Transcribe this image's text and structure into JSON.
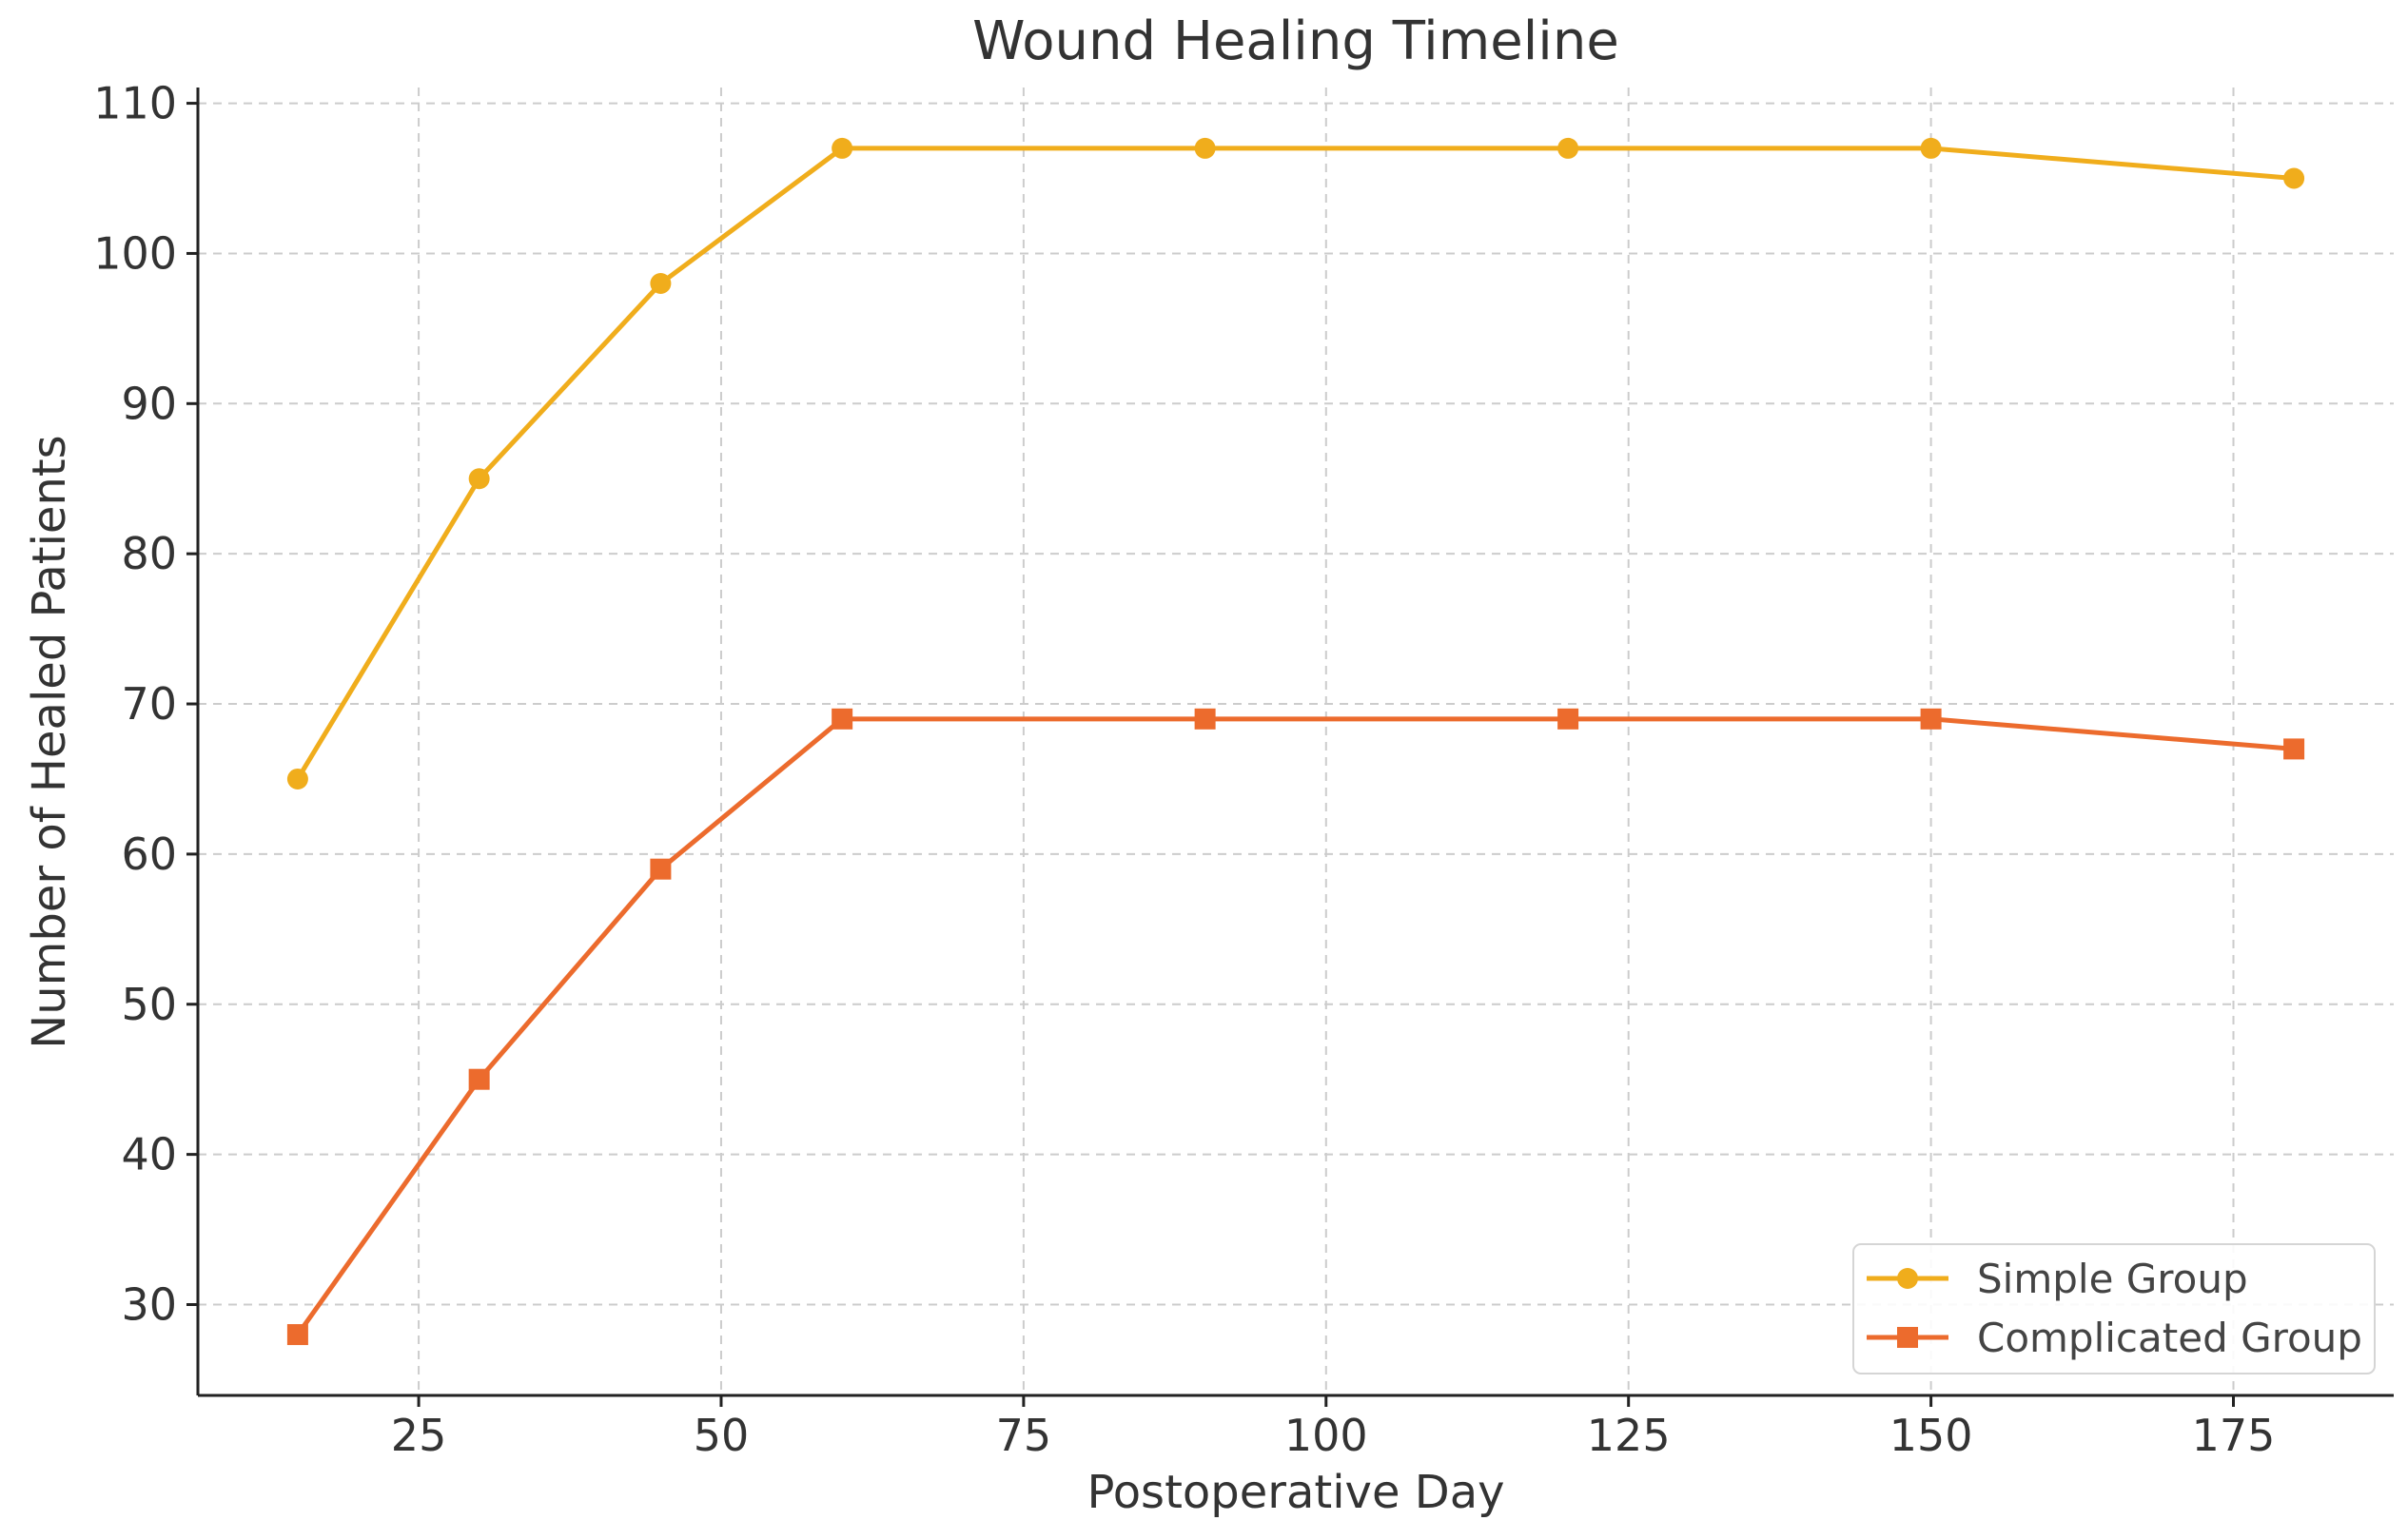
{
  "chart_data": {
    "type": "line",
    "title": "Wound Healing Timeline",
    "xlabel": "Postoperative Day",
    "ylabel": "Number of Healed Patients",
    "x": [
      15,
      30,
      45,
      60,
      90,
      120,
      150,
      180
    ],
    "xlim": [
      6.75,
      188.25
    ],
    "ylim": [
      23.95,
      111.05
    ],
    "xticks": [
      25,
      50,
      75,
      100,
      125,
      150,
      175
    ],
    "yticks": [
      30,
      40,
      50,
      60,
      70,
      80,
      90,
      100,
      110
    ],
    "grid": true,
    "legend_position": "lower-right",
    "series": [
      {
        "name": "Simple Group",
        "values": [
          65,
          85,
          98,
          107,
          107,
          107,
          107,
          105
        ],
        "color": "#f0ad1c",
        "marker": "circle"
      },
      {
        "name": "Complicated Group",
        "values": [
          28,
          45,
          59,
          69,
          69,
          69,
          69,
          67
        ],
        "color": "#ec6b2d",
        "marker": "square"
      }
    ]
  }
}
